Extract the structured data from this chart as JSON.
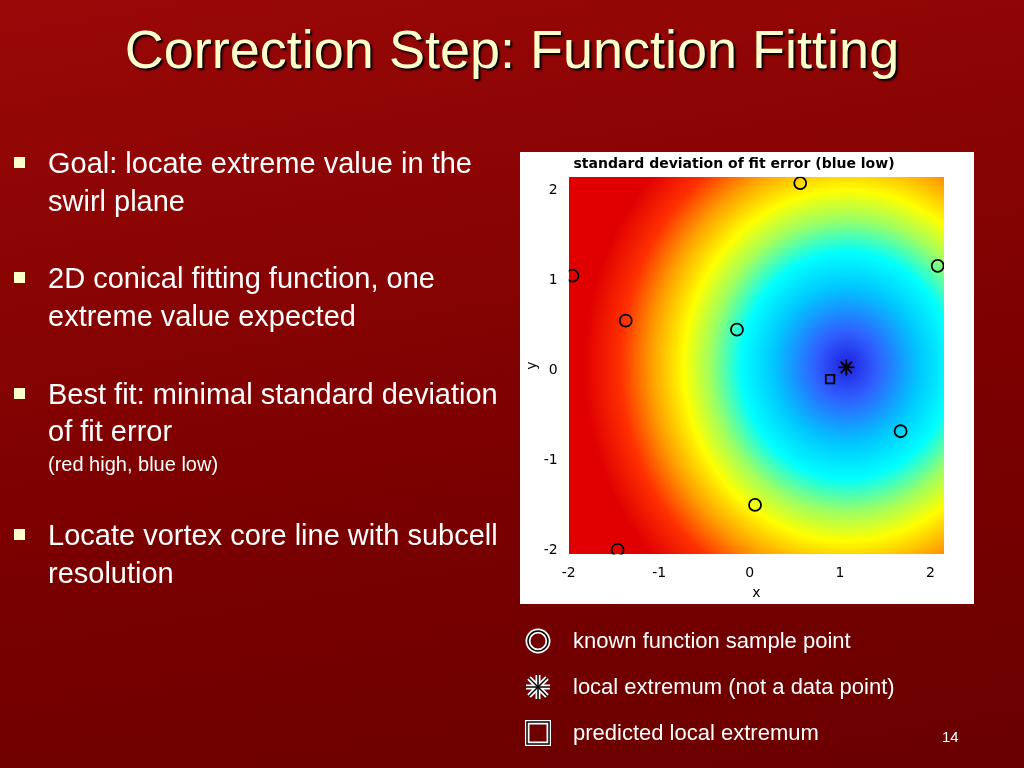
{
  "chart_data": {
    "type": "scatter",
    "title": "standard deviation of fit error (blue low)",
    "xlabel": "x",
    "ylabel": "y",
    "xlim": [
      -2,
      2.15
    ],
    "ylim": [
      -2.05,
      2.15
    ],
    "xticks": [
      -2,
      -1,
      0,
      1,
      2
    ],
    "yticks": [
      -2,
      -1,
      0,
      1,
      2
    ],
    "grid": false,
    "legend": "bottom",
    "series": [
      {
        "name": "known function sample point",
        "color": "#000000",
        "marker": "circle",
        "x": [
          0.56,
          2.08,
          -1.96,
          -1.37,
          -0.14,
          1.67,
          0.06,
          -1.46
        ],
        "values": [
          2.08,
          1.16,
          1.05,
          0.55,
          0.45,
          -0.68,
          -1.5,
          -2.0
        ]
      },
      {
        "name": "local extremum (not a data point)",
        "color": "#000000",
        "marker": "cross",
        "x": [
          1.07
        ],
        "values": [
          0.03
        ]
      },
      {
        "name": "predicted local extremum",
        "color": "#000000",
        "marker": "square",
        "x": [
          0.89
        ],
        "values": [
          -0.1
        ]
      }
    ],
    "annotations": [
      "Correction Step: Function Fitting",
      "Goal: locate extreme value in the swirl plane",
      "2D conical fitting function, one extreme value expected",
      "Best fit: minimal standard deviation of fit error\n(red high, blue low)",
      "Locate vortex core line with subcell resolution",
      "14"
    ]
  }
}
